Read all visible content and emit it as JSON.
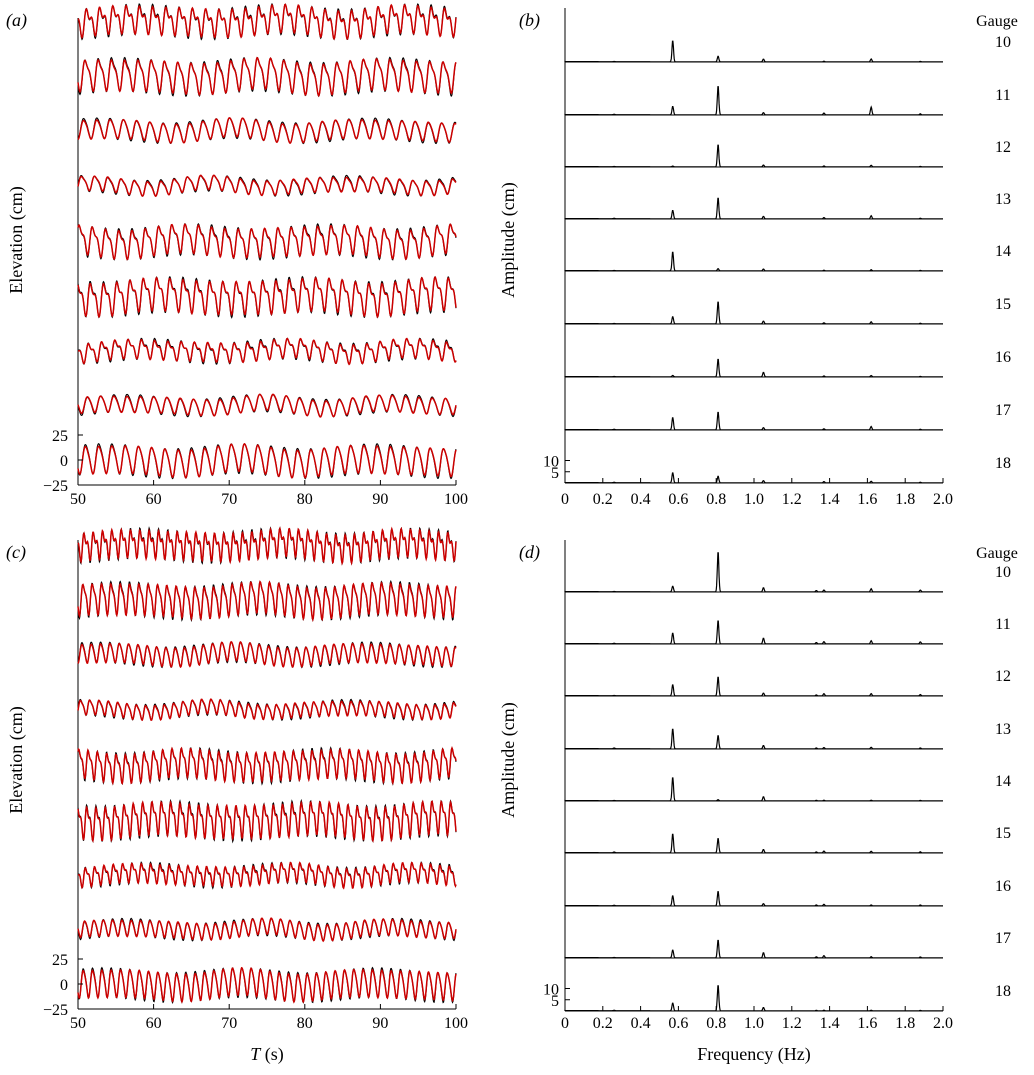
{
  "chart_data": [
    {
      "type": "line",
      "panel_label": "(a)",
      "ylabel": "Elevation (cm)",
      "xlabel": "",
      "xlim": [
        50,
        100
      ],
      "x_ticks": [
        "50",
        "60",
        "70",
        "80",
        "90",
        "100"
      ],
      "y_ticks_bottom_trace": [
        "25",
        "0",
        "−25"
      ],
      "traces_top_to_bottom": 9,
      "series": [
        {
          "color": "#000000",
          "role": "measured"
        },
        {
          "color": "#cc0000",
          "role": "simulated"
        }
      ],
      "dominant_frequency_hz": 0.57
    },
    {
      "type": "line",
      "panel_label": "(b)",
      "ylabel": "Amplitude (cm)",
      "xlabel": "",
      "xlim": [
        0,
        2.0
      ],
      "x_ticks": [
        "0",
        "0.2",
        "0.4",
        "0.6",
        "0.8",
        "1.0",
        "1.2",
        "1.4",
        "1.6",
        "1.8",
        "2.0"
      ],
      "y_ticks_bottom_trace": [
        "10",
        "5"
      ],
      "legend_title": "Gauge",
      "gauges": [
        "10",
        "11",
        "12",
        "13",
        "14",
        "15",
        "16",
        "17",
        "18"
      ],
      "peak_frequencies_hz": [
        0.26,
        0.57,
        0.81,
        1.05,
        1.37,
        1.62,
        1.88
      ],
      "peak_amplitudes_cm": [
        [
          0.1,
          9.5,
          2.5,
          1.2,
          0.3,
          1.3,
          0.2
        ],
        [
          0.2,
          3.8,
          13.0,
          1.0,
          0.8,
          3.5,
          0.5
        ],
        [
          0.1,
          0.3,
          10.0,
          0.8,
          0.4,
          0.7,
          0.2
        ],
        [
          0.2,
          3.8,
          9.5,
          1.1,
          0.6,
          1.4,
          0.3
        ],
        [
          0.1,
          8.5,
          1.0,
          0.8,
          0.3,
          0.5,
          0.2
        ],
        [
          0.1,
          3.2,
          10.0,
          1.2,
          0.5,
          0.9,
          0.3
        ],
        [
          0.1,
          0.6,
          8.0,
          2.0,
          0.4,
          0.6,
          0.2
        ],
        [
          0.2,
          5.5,
          8.0,
          1.0,
          0.5,
          1.5,
          0.3
        ],
        [
          0.2,
          4.5,
          3.0,
          1.0,
          0.6,
          0.7,
          0.3
        ]
      ]
    },
    {
      "type": "line",
      "panel_label": "(c)",
      "ylabel": "Elevation (cm)",
      "xlabel": "T (s)",
      "xlim": [
        50,
        100
      ],
      "x_ticks": [
        "50",
        "60",
        "70",
        "80",
        "90",
        "100"
      ],
      "y_ticks_bottom_trace": [
        "25",
        "0",
        "−25"
      ],
      "traces_top_to_bottom": 9,
      "series": [
        {
          "color": "#000000",
          "role": "measured"
        },
        {
          "color": "#cc0000",
          "role": "simulated"
        }
      ],
      "dominant_frequency_hz": 0.81
    },
    {
      "type": "line",
      "panel_label": "(d)",
      "ylabel": "Amplitude (cm)",
      "xlabel": "Frequency (Hz)",
      "xlim": [
        0,
        2.0
      ],
      "x_ticks": [
        "0",
        "0.2",
        "0.4",
        "0.6",
        "0.8",
        "1.0",
        "1.2",
        "1.4",
        "1.6",
        "1.8",
        "2.0"
      ],
      "y_ticks_bottom_trace": [
        "10",
        "5"
      ],
      "legend_title": "Gauge",
      "gauges": [
        "10",
        "11",
        "12",
        "13",
        "14",
        "15",
        "16",
        "17",
        "18"
      ],
      "peak_frequencies_hz": [
        0.26,
        0.57,
        0.81,
        1.05,
        1.33,
        1.37,
        1.62,
        1.88
      ],
      "peak_amplitudes_cm": [
        [
          0.1,
          2.5,
          18.0,
          1.8,
          0.6,
          0.8,
          1.4,
          0.8
        ],
        [
          0.2,
          4.8,
          10.5,
          2.5,
          0.6,
          1.0,
          1.4,
          0.9
        ],
        [
          0.1,
          5.0,
          8.5,
          1.2,
          0.4,
          1.0,
          1.0,
          0.6
        ],
        [
          0.3,
          9.0,
          6.0,
          1.5,
          0.4,
          0.6,
          0.7,
          0.4
        ],
        [
          0.1,
          10.5,
          0.5,
          1.8,
          0.2,
          0.3,
          0.3,
          0.2
        ],
        [
          0.3,
          8.5,
          6.5,
          1.5,
          0.4,
          0.8,
          0.7,
          0.5
        ],
        [
          0.2,
          4.5,
          6.5,
          1.0,
          0.4,
          0.7,
          0.4,
          0.4
        ],
        [
          0.1,
          3.5,
          8.0,
          2.3,
          0.5,
          1.0,
          0.5,
          0.4
        ],
        [
          0.2,
          3.5,
          11.5,
          1.5,
          0.2,
          0.3,
          0.3,
          0.2
        ]
      ]
    }
  ]
}
